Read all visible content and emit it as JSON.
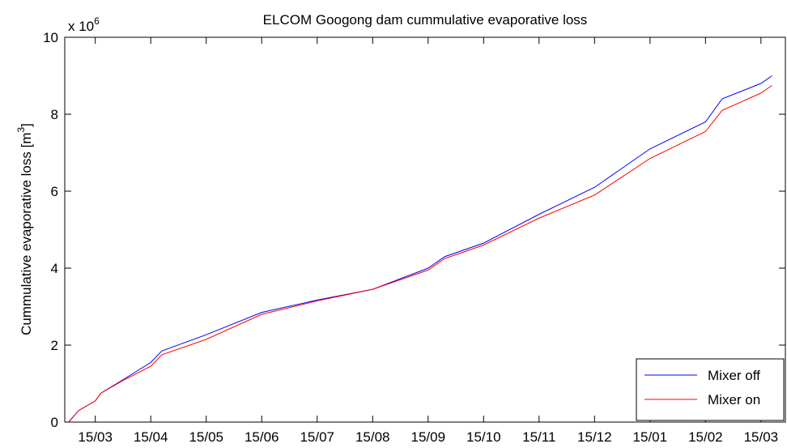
{
  "chart_data": {
    "type": "line",
    "title": "ELCOM Googong dam cummulative evaporative loss",
    "ylabel": "Cummulative evaporative loss [m",
    "ylabel_sup": "3",
    "ylabel_end": "]",
    "yscale_base": "x 10",
    "yscale_exp": "6",
    "xlim": [
      -0.55,
      12.44
    ],
    "ylim": [
      0,
      10
    ],
    "yticks": [
      0,
      2,
      4,
      6,
      8,
      10
    ],
    "xticks": [
      {
        "value": 0,
        "label": "15/03"
      },
      {
        "value": 1,
        "label": "15/04"
      },
      {
        "value": 2,
        "label": "15/05"
      },
      {
        "value": 3,
        "label": "15/06"
      },
      {
        "value": 4,
        "label": "15/07"
      },
      {
        "value": 5,
        "label": "15/08"
      },
      {
        "value": 6,
        "label": "15/09"
      },
      {
        "value": 7,
        "label": "15/10"
      },
      {
        "value": 8,
        "label": "15/11"
      },
      {
        "value": 9,
        "label": "15/12"
      },
      {
        "value": 10,
        "label": "15/01"
      },
      {
        "value": 11,
        "label": "15/02"
      },
      {
        "value": 12,
        "label": "15/03"
      }
    ],
    "x": [
      -0.48,
      -0.3,
      0,
      0.1,
      0.5,
      1,
      1.2,
      2,
      3,
      4,
      5,
      6,
      6.3,
      7,
      8,
      9,
      10,
      11,
      11.3,
      12,
      12.2
    ],
    "series": [
      {
        "name": "Mixer off",
        "color": "#0000ff",
        "values": [
          0,
          0.3,
          0.55,
          0.75,
          1.1,
          1.55,
          1.85,
          2.27,
          2.85,
          3.17,
          3.45,
          4.0,
          4.3,
          4.65,
          5.4,
          6.1,
          7.1,
          7.8,
          8.4,
          8.8,
          9.0
        ]
      },
      {
        "name": "Mixer on",
        "color": "#ff0000",
        "values": [
          0,
          0.3,
          0.55,
          0.75,
          1.08,
          1.45,
          1.75,
          2.15,
          2.8,
          3.15,
          3.45,
          3.95,
          4.25,
          4.6,
          5.3,
          5.9,
          6.85,
          7.55,
          8.1,
          8.55,
          8.75
        ]
      }
    ],
    "legend": "lower right",
    "grid": false
  }
}
